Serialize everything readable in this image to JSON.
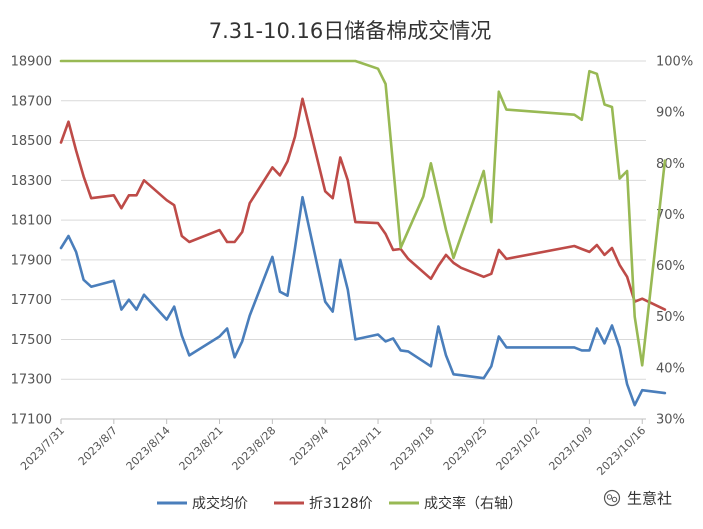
{
  "chart_data": {
    "type": "line",
    "title": "7.31-10.16日储备棉成交情况",
    "left_axis": {
      "min": 17100,
      "max": 18900,
      "ticks": [
        17100,
        17300,
        17500,
        17700,
        17900,
        18100,
        18300,
        18500,
        18700,
        18900
      ]
    },
    "right_axis": {
      "min": 30,
      "max": 100,
      "ticks": [
        "30%",
        "40%",
        "50%",
        "60%",
        "70%",
        "80%",
        "90%",
        "100%"
      ]
    },
    "x_range": [
      "2023-07-31",
      "2023-10-16"
    ],
    "x_tick_labels": [
      "2023/7/31",
      "2023/8/7",
      "2023/8/14",
      "2023/8/21",
      "2023/8/28",
      "2023/9/4",
      "2023/9/11",
      "2023/9/18",
      "2023/9/25",
      "2023/10/2",
      "2023/10/9",
      "2023/10/16"
    ],
    "grid": "horizontal",
    "legend_position": "bottom",
    "series": [
      {
        "name": "成交均价",
        "axis": "left",
        "color": "#4a7ebb",
        "points": [
          [
            "2023-07-31",
            17960
          ],
          [
            "2023-08-01",
            18020
          ],
          [
            "2023-08-02",
            17940
          ],
          [
            "2023-08-03",
            17800
          ],
          [
            "2023-08-04",
            17765
          ],
          [
            "2023-08-07",
            17795
          ],
          [
            "2023-08-08",
            17650
          ],
          [
            "2023-08-09",
            17700
          ],
          [
            "2023-08-10",
            17650
          ],
          [
            "2023-08-11",
            17725
          ],
          [
            "2023-08-14",
            17600
          ],
          [
            "2023-08-15",
            17665
          ],
          [
            "2023-08-16",
            17520
          ],
          [
            "2023-08-17",
            17420
          ],
          [
            "2023-08-21",
            17515
          ],
          [
            "2023-08-22",
            17555
          ],
          [
            "2023-08-23",
            17410
          ],
          [
            "2023-08-24",
            17490
          ],
          [
            "2023-08-25",
            17620
          ],
          [
            "2023-08-28",
            17915
          ],
          [
            "2023-08-29",
            17740
          ],
          [
            "2023-08-30",
            17720
          ],
          [
            "2023-08-31",
            17960
          ],
          [
            "2023-09-01",
            18215
          ],
          [
            "2023-09-04",
            17690
          ],
          [
            "2023-09-05",
            17640
          ],
          [
            "2023-09-06",
            17900
          ],
          [
            "2023-09-07",
            17750
          ],
          [
            "2023-09-08",
            17500
          ],
          [
            "2023-09-11",
            17525
          ],
          [
            "2023-09-12",
            17490
          ],
          [
            "2023-09-13",
            17505
          ],
          [
            "2023-09-14",
            17445
          ],
          [
            "2023-09-15",
            17440
          ],
          [
            "2023-09-18",
            17365
          ],
          [
            "2023-09-19",
            17565
          ],
          [
            "2023-09-20",
            17420
          ],
          [
            "2023-09-21",
            17325
          ],
          [
            "2023-09-22",
            17320
          ],
          [
            "2023-09-25",
            17305
          ],
          [
            "2023-09-26",
            17365
          ],
          [
            "2023-09-27",
            17515
          ],
          [
            "2023-09-28",
            17460
          ],
          [
            "2023-10-07",
            17460
          ],
          [
            "2023-10-08",
            17445
          ],
          [
            "2023-10-09",
            17445
          ],
          [
            "2023-10-10",
            17555
          ],
          [
            "2023-10-11",
            17480
          ],
          [
            "2023-10-12",
            17570
          ],
          [
            "2023-10-13",
            17460
          ],
          [
            "2023-10-14",
            17275
          ],
          [
            "2023-10-15",
            17170
          ],
          [
            "2023-10-16",
            17245
          ],
          [
            "2023-10-19",
            17230
          ]
        ]
      },
      {
        "name": "折3128价",
        "axis": "left",
        "color": "#be4b48",
        "points": [
          [
            "2023-07-31",
            18490
          ],
          [
            "2023-08-01",
            18595
          ],
          [
            "2023-08-02",
            18450
          ],
          [
            "2023-08-03",
            18320
          ],
          [
            "2023-08-04",
            18210
          ],
          [
            "2023-08-07",
            18225
          ],
          [
            "2023-08-08",
            18160
          ],
          [
            "2023-08-09",
            18225
          ],
          [
            "2023-08-10",
            18225
          ],
          [
            "2023-08-11",
            18300
          ],
          [
            "2023-08-14",
            18200
          ],
          [
            "2023-08-15",
            18175
          ],
          [
            "2023-08-16",
            18020
          ],
          [
            "2023-08-17",
            17990
          ],
          [
            "2023-08-21",
            18050
          ],
          [
            "2023-08-22",
            17990
          ],
          [
            "2023-08-23",
            17990
          ],
          [
            "2023-08-24",
            18040
          ],
          [
            "2023-08-25",
            18185
          ],
          [
            "2023-08-28",
            18365
          ],
          [
            "2023-08-29",
            18325
          ],
          [
            "2023-08-30",
            18395
          ],
          [
            "2023-08-31",
            18520
          ],
          [
            "2023-09-01",
            18710
          ],
          [
            "2023-09-04",
            18245
          ],
          [
            "2023-09-05",
            18210
          ],
          [
            "2023-09-06",
            18415
          ],
          [
            "2023-09-07",
            18300
          ],
          [
            "2023-09-08",
            18090
          ],
          [
            "2023-09-11",
            18085
          ],
          [
            "2023-09-12",
            18030
          ],
          [
            "2023-09-13",
            17950
          ],
          [
            "2023-09-14",
            17955
          ],
          [
            "2023-09-15",
            17905
          ],
          [
            "2023-09-18",
            17805
          ],
          [
            "2023-09-19",
            17870
          ],
          [
            "2023-09-20",
            17925
          ],
          [
            "2023-09-21",
            17885
          ],
          [
            "2023-09-22",
            17860
          ],
          [
            "2023-09-25",
            17815
          ],
          [
            "2023-09-26",
            17830
          ],
          [
            "2023-09-27",
            17950
          ],
          [
            "2023-09-28",
            17905
          ],
          [
            "2023-10-07",
            17970
          ],
          [
            "2023-10-08",
            17955
          ],
          [
            "2023-10-09",
            17940
          ],
          [
            "2023-10-10",
            17975
          ],
          [
            "2023-10-11",
            17925
          ],
          [
            "2023-10-12",
            17960
          ],
          [
            "2023-10-13",
            17875
          ],
          [
            "2023-10-14",
            17815
          ],
          [
            "2023-10-15",
            17690
          ],
          [
            "2023-10-16",
            17705
          ],
          [
            "2023-10-19",
            17650
          ]
        ]
      },
      {
        "name": "成交率（右轴）",
        "axis": "right",
        "color": "#98b954",
        "points": [
          [
            "2023-07-31",
            100
          ],
          [
            "2023-09-08",
            100
          ],
          [
            "2023-09-11",
            98.5
          ],
          [
            "2023-09-12",
            95.5
          ],
          [
            "2023-09-14",
            63.5
          ],
          [
            "2023-09-17",
            73.5
          ],
          [
            "2023-09-18",
            80
          ],
          [
            "2023-09-20",
            67
          ],
          [
            "2023-09-21",
            61.5
          ],
          [
            "2023-09-25",
            78.5
          ],
          [
            "2023-09-26",
            68.5
          ],
          [
            "2023-09-27",
            94
          ],
          [
            "2023-09-28",
            90.5
          ],
          [
            "2023-10-07",
            89.5
          ],
          [
            "2023-10-08",
            88.5
          ],
          [
            "2023-10-09",
            98
          ],
          [
            "2023-10-10",
            97.5
          ],
          [
            "2023-10-11",
            91.5
          ],
          [
            "2023-10-12",
            91
          ],
          [
            "2023-10-13",
            77
          ],
          [
            "2023-10-14",
            78.5
          ],
          [
            "2023-10-15",
            50
          ],
          [
            "2023-10-16",
            40.5
          ],
          [
            "2023-10-19",
            80.5
          ]
        ]
      }
    ]
  },
  "watermark": "生意社"
}
